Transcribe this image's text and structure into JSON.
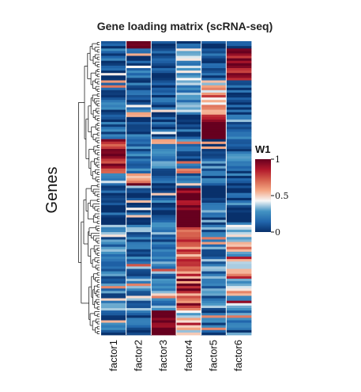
{
  "chart_data": {
    "type": "heatmap",
    "title": "Gene loading matrix (scRNA-seq)",
    "ylabel": "Genes",
    "columns": [
      "factor1",
      "factor2",
      "factor3",
      "factor4",
      "factor5",
      "factor6"
    ],
    "row_order": "hierarchically clustered (dendrogram on left)",
    "legend": {
      "title": "W1",
      "ticks": [
        "0",
        "0.5",
        "1"
      ],
      "range": [
        0,
        1
      ],
      "colors": [
        "#08306b",
        "#2166ac",
        "#4393c3",
        "#f7f7f7",
        "#f4a582",
        "#d6604d",
        "#b2182b",
        "#67001f"
      ],
      "placement": "right"
    },
    "blocks": [
      {
        "rows": "1-3",
        "factor2": 0.95,
        "others": 0.05
      },
      {
        "rows": "4-16",
        "factor6": 0.9,
        "factor4": 0.35,
        "others": 0.1
      },
      {
        "rows": "17-30",
        "factor5": 0.5,
        "factor4": 0.25,
        "others": 0.1
      },
      {
        "rows": "31-40",
        "factor5": 0.95,
        "others": 0.1
      },
      {
        "rows": "41-54",
        "factor1": 0.85,
        "others": 0.15
      },
      {
        "rows": "55-60",
        "factor2": 0.5,
        "others": 0.1
      },
      {
        "rows": "61-75",
        "factor4": 1.0,
        "others": 0.05
      },
      {
        "rows": "76-110",
        "factor4": 0.7,
        "factor6": 0.4,
        "others": 0.2
      },
      {
        "rows": "111-120",
        "factor3": 0.95,
        "factor4": 0.4,
        "others": 0.15
      }
    ]
  }
}
